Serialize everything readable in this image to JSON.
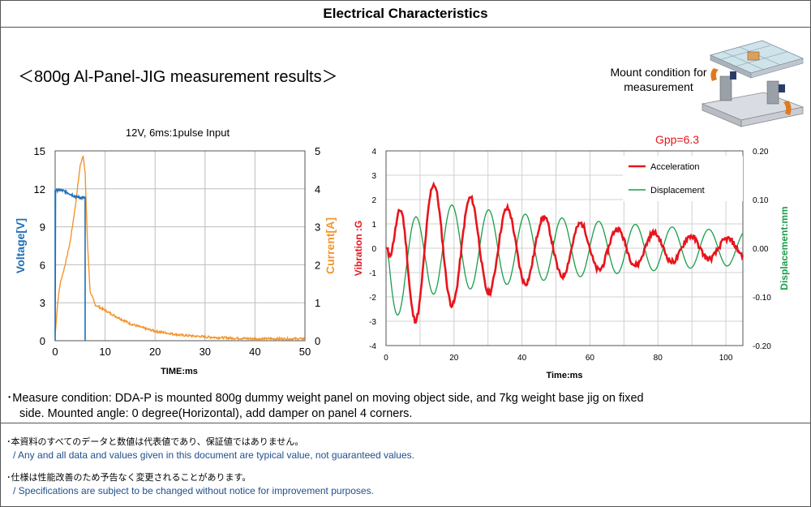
{
  "header": {
    "title": "Electrical Characteristics"
  },
  "subtitle": "＜800g Al-Panel-JIG measurement results＞",
  "mount": {
    "label": "Mount condition for measurement"
  },
  "chart_data": [
    {
      "type": "line",
      "title": "12V, 6ms:1pulse Input",
      "xlabel": "TIME:ms",
      "ylabel_left": "Voltage[V]",
      "ylabel_right": "Current[A]",
      "xlim": [
        0,
        50
      ],
      "ylim_left": [
        0,
        15
      ],
      "ylim_right": [
        0,
        5
      ],
      "xticks": [
        "0",
        "10",
        "20",
        "30",
        "40",
        "50"
      ],
      "yticks_left": [
        "0",
        "3",
        "6",
        "9",
        "12",
        "15"
      ],
      "yticks_right": [
        "0",
        "1",
        "2",
        "3",
        "4",
        "5"
      ],
      "grid": true,
      "colors": {
        "voltage": "#1f6fb8",
        "current": "#f2952e"
      },
      "series": [
        {
          "axis": "left",
          "x": [
            0,
            0.05,
            1,
            2,
            3,
            4,
            5,
            5.8,
            6,
            6.01
          ],
          "values": [
            0,
            11.9,
            11.9,
            11.8,
            11.6,
            11.4,
            11.3,
            11.3,
            11.3,
            0
          ]
        },
        {
          "axis": "right",
          "x": [
            0,
            0.5,
            1,
            2,
            3,
            4,
            5,
            5.6,
            6,
            6.5,
            7,
            8,
            10,
            12,
            15,
            18,
            20,
            25,
            30,
            35,
            40,
            50
          ],
          "values": [
            0.15,
            1.0,
            1.5,
            2.0,
            2.6,
            3.5,
            4.6,
            4.9,
            4.4,
            2.5,
            1.3,
            0.95,
            0.8,
            0.65,
            0.45,
            0.32,
            0.25,
            0.15,
            0.1,
            0.07,
            0.05,
            0.05
          ]
        }
      ]
    },
    {
      "type": "line",
      "title": "Gpp=6.3",
      "xlabel": "Time:ms",
      "ylabel_left": "Vibration :G",
      "ylabel_right": "Displacement:mm",
      "xlim": [
        0,
        105
      ],
      "ylim_left": [
        -4,
        4
      ],
      "ylim_right": [
        -0.2,
        0.2
      ],
      "xticks": [
        "0",
        "20",
        "40",
        "60",
        "80",
        "100"
      ],
      "yticks_left": [
        "-4",
        "-3",
        "-2",
        "-1",
        "0",
        "1",
        "2",
        "3",
        "4"
      ],
      "yticks_right": [
        "-0.20",
        "-0.10",
        "0.00",
        "0.10",
        "0.20"
      ],
      "grid": true,
      "legend": {
        "placement": "top-right",
        "entries": [
          "Acceleration",
          "Displacement"
        ]
      },
      "colors": {
        "acceleration": "#e8141c",
        "displacement": "#1a9e4a"
      },
      "series": [
        {
          "name": "Acceleration",
          "axis": "left",
          "model": {
            "start_ms": 0.5,
            "period_ms": 10.8,
            "phase_ms": 2.8,
            "peak_g": 3.2,
            "decay_per_ms": 0.022,
            "trough_g": -3.0,
            "end_peak_g": 0.9
          }
        },
        {
          "name": "Displacement",
          "axis": "right",
          "model": {
            "start_ms": 0.5,
            "period_ms": 10.8,
            "phase_ms": 13.0,
            "peak_mm": 0.075,
            "first_trough_mm": -0.16,
            "decay_per_ms": 0.011
          }
        }
      ]
    }
  ],
  "notes": {
    "line1": "･Measure condition: DDA-P is mounted 800g dummy weight panel on moving object side, and 7kg weight base jig on fixed",
    "line2": "side. Mounted angle: 0 degree(Horizontal), add damper on panel 4 corners."
  },
  "disclaimers": [
    {
      "jp": "･本資料のすべてのデータと数値は代表値であり、保証値ではありません。",
      "en": "/ Any and all data and values given in this document are typical value, not guaranteed values."
    },
    {
      "jp": "･仕様は性能改善のため予告なく変更されることがあります。",
      "en": "/ Specifications are subject to be changed without notice for improvement purposes."
    }
  ]
}
